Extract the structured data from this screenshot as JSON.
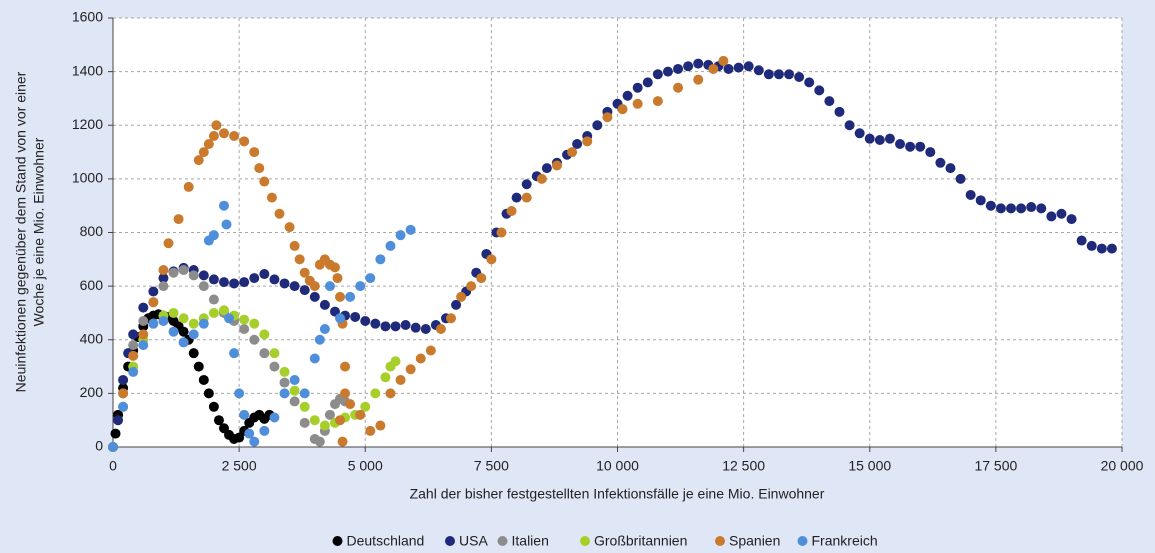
{
  "chart_data": {
    "type": "scatter",
    "xlabel": "Zahl der bisher festgestellten Infektionsfälle je eine Mio. Einwohner",
    "ylabel": [
      "Neuinfektionen gegenüber dem Stand von vor einer",
      "Woche je eine Mio. Einwohner"
    ],
    "xlim": [
      0,
      20000
    ],
    "ylim": [
      0,
      1600
    ],
    "xticks": [
      0,
      {
        "value": 2500,
        "label": "2 500"
      },
      {
        "value": 5000,
        "label": "5 000"
      },
      {
        "value": 7500,
        "label": "7 500"
      },
      {
        "value": 10000,
        "label": "10 000"
      },
      {
        "value": 12500,
        "label": "12 500"
      },
      {
        "value": 15000,
        "label": "15 000"
      },
      {
        "value": 17500,
        "label": "17 500"
      },
      {
        "value": 20000,
        "label": "20 000"
      }
    ],
    "yticks": [
      0,
      200,
      400,
      600,
      800,
      1000,
      1200,
      1400,
      1600
    ],
    "grid": true,
    "legend": "bottom",
    "series": [
      {
        "name": "Deutschland",
        "color": "#000000",
        "x": [
          0,
          50,
          100,
          200,
          300,
          400,
          500,
          600,
          700,
          800,
          900,
          1000,
          1100,
          1200,
          1300,
          1400,
          1500,
          1600,
          1700,
          1800,
          1900,
          2000,
          2100,
          2200,
          2300,
          2400,
          2500,
          2600,
          2700,
          2800,
          2900,
          3000,
          3100
        ],
        "values": [
          0,
          50,
          120,
          220,
          300,
          360,
          410,
          450,
          480,
          490,
          495,
          490,
          485,
          470,
          450,
          430,
          400,
          350,
          300,
          250,
          200,
          150,
          100,
          70,
          45,
          30,
          35,
          60,
          90,
          110,
          120,
          105,
          120
        ]
      },
      {
        "name": "USA",
        "color": "#1f2a7a",
        "x": [
          0,
          100,
          200,
          300,
          400,
          600,
          800,
          1000,
          1200,
          1400,
          1600,
          1800,
          2000,
          2200,
          2400,
          2600,
          2800,
          3000,
          3200,
          3400,
          3600,
          3800,
          4000,
          4200,
          4400,
          4600,
          4800,
          5000,
          5200,
          5400,
          5600,
          5800,
          6000,
          6200,
          6400,
          6600,
          6800,
          7000,
          7200,
          7400,
          7600,
          7800,
          8000,
          8200,
          8400,
          8600,
          8800,
          9000,
          9200,
          9400,
          9600,
          9800,
          10000,
          10200,
          10400,
          10600,
          10800,
          11000,
          11200,
          11400,
          11600,
          11800,
          12000,
          12200,
          12400,
          12600,
          12800,
          13000,
          13200,
          13400,
          13600,
          13800,
          14000,
          14200,
          14400,
          14600,
          14800,
          15000,
          15200,
          15400,
          15600,
          15800,
          16000,
          16200,
          16400,
          16600,
          16800,
          17000,
          17200,
          17400,
          17600,
          17800,
          18000,
          18200,
          18400,
          18600,
          18800,
          19000,
          19200,
          19400,
          19600,
          19800
        ],
        "values": [
          0,
          100,
          250,
          350,
          420,
          520,
          580,
          630,
          655,
          668,
          660,
          640,
          625,
          615,
          610,
          615,
          630,
          645,
          625,
          610,
          600,
          585,
          560,
          530,
          505,
          490,
          485,
          470,
          460,
          450,
          450,
          455,
          445,
          440,
          455,
          480,
          530,
          580,
          650,
          720,
          800,
          870,
          930,
          980,
          1010,
          1040,
          1060,
          1090,
          1130,
          1160,
          1200,
          1250,
          1280,
          1310,
          1340,
          1360,
          1390,
          1400,
          1410,
          1420,
          1430,
          1425,
          1420,
          1410,
          1415,
          1420,
          1405,
          1390,
          1390,
          1390,
          1380,
          1360,
          1330,
          1290,
          1250,
          1200,
          1170,
          1150,
          1145,
          1150,
          1130,
          1120,
          1120,
          1100,
          1060,
          1040,
          1000,
          940,
          920,
          900,
          890,
          890,
          890,
          895,
          890,
          860,
          870,
          850,
          770,
          750,
          740,
          740
        ]
      },
      {
        "name": "Italien",
        "color": "#8c8c8c",
        "x": [
          0,
          200,
          400,
          600,
          800,
          1000,
          1200,
          1400,
          1600,
          1800,
          2000,
          2200,
          2400,
          2600,
          2800,
          3000,
          3200,
          3400,
          3600,
          3800,
          4000,
          4100,
          4200,
          4300,
          4400,
          4500,
          4600
        ],
        "values": [
          0,
          200,
          380,
          470,
          540,
          600,
          650,
          660,
          640,
          600,
          550,
          500,
          470,
          440,
          400,
          350,
          300,
          240,
          170,
          90,
          30,
          20,
          60,
          120,
          160,
          180,
          170
        ]
      },
      {
        "name": "Großbritannien",
        "color": "#a6cf2a",
        "x": [
          0,
          200,
          400,
          600,
          800,
          1000,
          1200,
          1400,
          1600,
          1800,
          2000,
          2200,
          2400,
          2600,
          2800,
          3000,
          3200,
          3400,
          3600,
          3800,
          4000,
          4200,
          4400,
          4600,
          4800,
          5000,
          5200,
          5400,
          5500,
          5600
        ],
        "values": [
          0,
          150,
          300,
          400,
          460,
          490,
          500,
          480,
          460,
          480,
          500,
          510,
          490,
          475,
          460,
          420,
          350,
          280,
          210,
          150,
          100,
          80,
          90,
          110,
          120,
          150,
          200,
          260,
          300,
          320
        ]
      },
      {
        "name": "Spanien",
        "color": "#c97a2c",
        "x": [
          0,
          200,
          400,
          600,
          800,
          1000,
          1100,
          1300,
          1500,
          1700,
          1800,
          1900,
          2000,
          2050,
          2200,
          2400,
          2600,
          2800,
          2900,
          3000,
          3150,
          3300,
          3500,
          3600,
          3700,
          3800,
          3900,
          4000,
          4100,
          4200,
          4300,
          4400,
          4450,
          4500,
          4550,
          4600,
          4600,
          4500,
          4550,
          4700,
          4900,
          5100,
          5300,
          5500,
          5700,
          5900,
          6100,
          6300,
          6500,
          6700,
          6900,
          7100,
          7300,
          7500,
          7700,
          7900,
          8200,
          8500,
          8800,
          9100,
          9400,
          9800,
          10100,
          10400,
          10800,
          11200,
          11600,
          11900,
          12100
        ],
        "values": [
          0,
          200,
          340,
          420,
          540,
          660,
          760,
          850,
          970,
          1070,
          1100,
          1130,
          1160,
          1200,
          1170,
          1160,
          1140,
          1100,
          1040,
          990,
          930,
          870,
          820,
          750,
          700,
          650,
          620,
          600,
          680,
          700,
          680,
          670,
          630,
          560,
          460,
          300,
          200,
          100,
          20,
          160,
          120,
          60,
          80,
          200,
          250,
          290,
          330,
          360,
          440,
          480,
          560,
          600,
          630,
          700,
          800,
          880,
          930,
          1000,
          1050,
          1100,
          1140,
          1230,
          1260,
          1280,
          1290,
          1340,
          1370,
          1410,
          1440
        ]
      },
      {
        "name": "Frankreich",
        "color": "#4f8edb",
        "x": [
          0,
          200,
          400,
          600,
          800,
          1000,
          1200,
          1400,
          1600,
          1800,
          1900,
          2000,
          2200,
          2250,
          2300,
          2400,
          2500,
          2600,
          2700,
          2800,
          3000,
          3200,
          3400,
          3600,
          3800,
          4000,
          4100,
          4200,
          4300,
          4500,
          4700,
          4900,
          5100,
          5300,
          5500,
          5700,
          5900
        ],
        "values": [
          0,
          150,
          280,
          380,
          460,
          470,
          430,
          390,
          420,
          460,
          770,
          790,
          900,
          830,
          480,
          350,
          200,
          120,
          50,
          20,
          60,
          110,
          200,
          250,
          200,
          330,
          400,
          440,
          600,
          480,
          560,
          600,
          630,
          700,
          750,
          790,
          810
        ]
      }
    ]
  }
}
